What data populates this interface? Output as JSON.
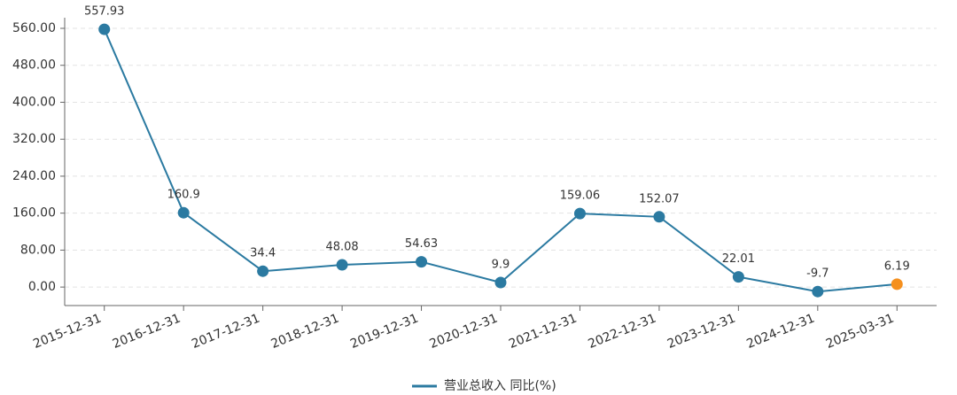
{
  "chart_data": {
    "type": "line",
    "categories": [
      "2015-12-31",
      "2016-12-31",
      "2017-12-31",
      "2018-12-31",
      "2019-12-31",
      "2020-12-31",
      "2021-12-31",
      "2022-12-31",
      "2023-12-31",
      "2024-12-31",
      "2025-03-31"
    ],
    "series": [
      {
        "name": "营业总收入 同比(%)",
        "color": "#2b7aa1",
        "values": [
          557.93,
          160.9,
          34.4,
          48.08,
          54.63,
          9.9,
          159.06,
          152.07,
          22.01,
          -9.7,
          6.19
        ]
      }
    ],
    "last_point_color": "#f5901e",
    "ylim": [
      -40,
      560
    ],
    "yticks": [
      {
        "value": 0,
        "label": "0.00"
      },
      {
        "value": 80,
        "label": "80.00"
      },
      {
        "value": 160,
        "label": "160.00"
      },
      {
        "value": 240,
        "label": "240.00"
      },
      {
        "value": 320,
        "label": "320.00"
      },
      {
        "value": 400,
        "label": "400.00"
      },
      {
        "value": 480,
        "label": "480.00"
      },
      {
        "value": 560,
        "label": "560.00"
      }
    ],
    "grid": true,
    "legend": "bottom"
  }
}
